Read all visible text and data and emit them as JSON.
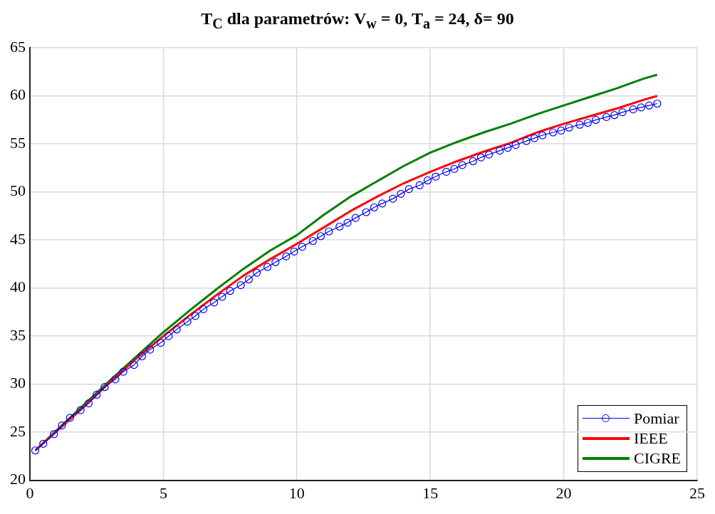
{
  "chart_data": {
    "type": "line",
    "title": "T$_{C}$ dla parametrów: V$_{w}$ = 0, T$_{a}$ = 24, δ= 90",
    "xlim": [
      0,
      25
    ],
    "xticks": [
      0,
      5,
      10,
      15,
      20,
      25
    ],
    "ylim": [
      20,
      65
    ],
    "yticks": [
      20,
      25,
      30,
      35,
      40,
      45,
      50,
      55,
      60,
      65
    ],
    "grid": true,
    "legend": "bottom right",
    "line_style": "solid",
    "series": [
      {
        "name": "Pomiar",
        "color": "#0000ff",
        "marker": "circle",
        "x": [
          0.2,
          0.5,
          0.9,
          1.2,
          1.5,
          1.9,
          2.2,
          2.5,
          2.8,
          3.2,
          3.5,
          3.9,
          4.2,
          4.5,
          4.9,
          5.2,
          5.5,
          5.9,
          6.2,
          6.5,
          6.9,
          7.2,
          7.5,
          7.9,
          8.2,
          8.5,
          8.9,
          9.2,
          9.6,
          9.9,
          10.2,
          10.6,
          10.9,
          11.2,
          11.6,
          11.9,
          12.2,
          12.6,
          12.9,
          13.2,
          13.6,
          13.9,
          14.2,
          14.6,
          14.9,
          15.2,
          15.6,
          15.9,
          16.2,
          16.6,
          16.9,
          17.2,
          17.6,
          17.9,
          18.2,
          18.6,
          18.9,
          19.2,
          19.6,
          19.9,
          20.2,
          20.6,
          20.9,
          21.2,
          21.6,
          21.9,
          22.2,
          22.6,
          22.9,
          23.2,
          23.5
        ],
        "values": [
          23.1,
          23.8,
          24.8,
          25.7,
          26.5,
          27.3,
          28.0,
          28.9,
          29.7,
          30.5,
          31.3,
          32.0,
          32.9,
          33.6,
          34.3,
          35.0,
          35.7,
          36.5,
          37.1,
          37.8,
          38.5,
          39.1,
          39.7,
          40.3,
          40.9,
          41.6,
          42.2,
          42.7,
          43.3,
          43.8,
          44.3,
          44.9,
          45.4,
          45.9,
          46.4,
          46.8,
          47.3,
          47.9,
          48.4,
          48.8,
          49.3,
          49.8,
          50.3,
          50.7,
          51.2,
          51.6,
          52.1,
          52.4,
          52.8,
          53.2,
          53.6,
          53.9,
          54.3,
          54.6,
          54.9,
          55.3,
          55.6,
          55.9,
          56.2,
          56.4,
          56.7,
          57.0,
          57.2,
          57.5,
          57.8,
          58.0,
          58.3,
          58.6,
          58.8,
          59.0,
          59.2
        ]
      },
      {
        "name": "IEEE",
        "color": "#ff0000",
        "marker": "none",
        "x": [
          0.2,
          1,
          2,
          3,
          4,
          5,
          6,
          7,
          8,
          9,
          10,
          11,
          12,
          13,
          14,
          15,
          16,
          17,
          18,
          19,
          20,
          21,
          22,
          23,
          23.5
        ],
        "values": [
          23.1,
          25.1,
          27.6,
          30.2,
          32.7,
          35.0,
          37.2,
          39.3,
          41.3,
          43.0,
          44.6,
          46.3,
          48.0,
          49.5,
          50.9,
          52.1,
          53.2,
          54.2,
          55.1,
          56.2,
          57.1,
          57.9,
          58.7,
          59.6,
          60.0
        ]
      },
      {
        "name": "CIGRE",
        "color": "#008000",
        "marker": "none",
        "x": [
          0.2,
          1,
          2,
          3,
          4,
          5,
          6,
          7,
          8,
          9,
          10,
          11,
          12,
          13,
          14,
          15,
          16,
          17,
          18,
          19,
          20,
          21,
          22,
          23,
          23.5
        ],
        "values": [
          23.1,
          25.2,
          27.8,
          30.4,
          32.9,
          35.4,
          37.7,
          39.9,
          42.0,
          43.9,
          45.5,
          47.6,
          49.5,
          51.1,
          52.7,
          54.1,
          55.2,
          56.2,
          57.1,
          58.1,
          59.0,
          59.9,
          60.8,
          61.8,
          62.2
        ]
      }
    ]
  }
}
